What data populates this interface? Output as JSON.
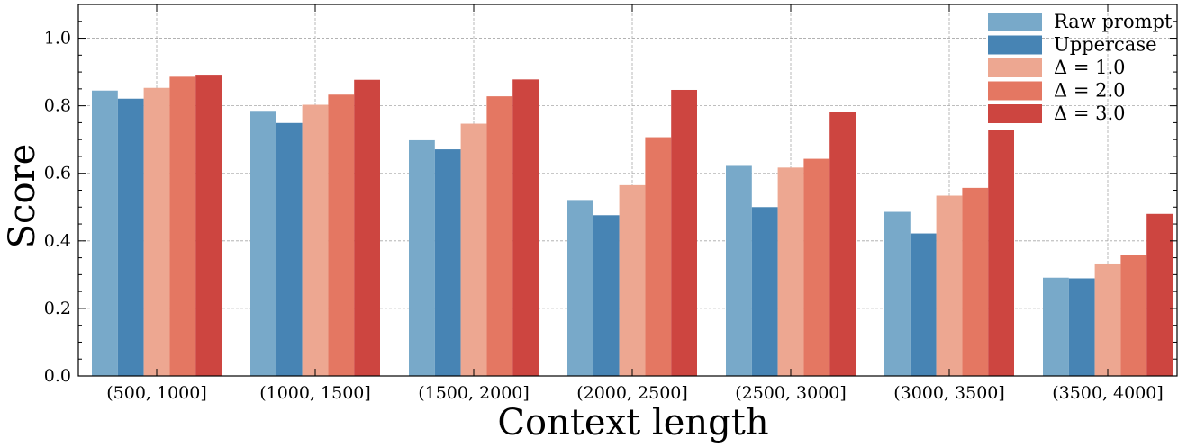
{
  "chart_data": {
    "type": "bar",
    "title": "",
    "xlabel": "Context length",
    "ylabel": "Score",
    "ylim": [
      0,
      1.1
    ],
    "yticks": [
      0.0,
      0.2,
      0.4,
      0.6,
      0.8,
      1.0
    ],
    "ytick_labels": [
      "0.0",
      "0.2",
      "0.4",
      "0.6",
      "0.8",
      "1.0"
    ],
    "grid": true,
    "legend_position": "top-right",
    "categories": [
      "(500, 1000]",
      "(1000, 1500]",
      "(1500, 2000]",
      "(2000, 2500]",
      "(2500, 3000]",
      "(3000, 3500]",
      "(3500, 4000]"
    ],
    "series": [
      {
        "name": "Raw prompt",
        "color": "#78A9C9",
        "values": [
          0.845,
          0.785,
          0.698,
          0.521,
          0.622,
          0.486,
          0.291
        ]
      },
      {
        "name": "Uppercase",
        "color": "#4784B4",
        "values": [
          0.821,
          0.749,
          0.671,
          0.476,
          0.5,
          0.422,
          0.289
        ]
      },
      {
        "name": "Δ = 1.0",
        "color": "#EDA791",
        "values": [
          0.853,
          0.803,
          0.747,
          0.565,
          0.617,
          0.534,
          0.333
        ]
      },
      {
        "name": "Δ = 2.0",
        "color": "#E47762",
        "values": [
          0.886,
          0.833,
          0.828,
          0.707,
          0.643,
          0.557,
          0.358
        ]
      },
      {
        "name": "Δ = 3.0",
        "color": "#CD4540",
        "values": [
          0.892,
          0.877,
          0.878,
          0.847,
          0.781,
          0.729,
          0.48
        ]
      }
    ]
  }
}
